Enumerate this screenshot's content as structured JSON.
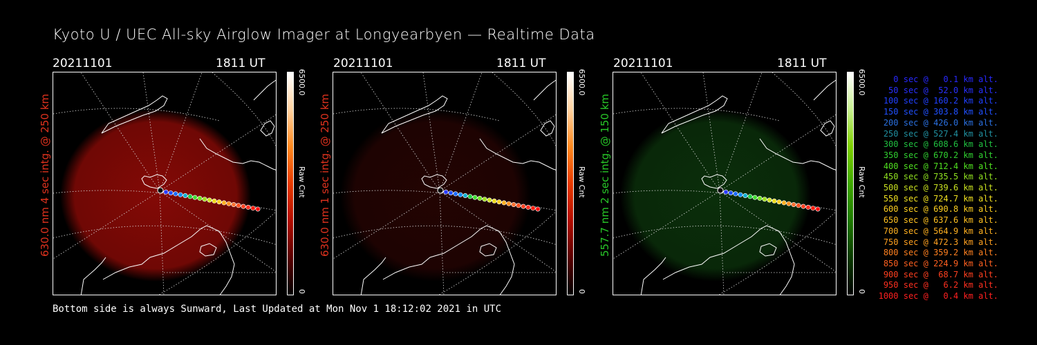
{
  "title": "Kyoto U / UEC All-sky Airglow Imager at Longyearbyen — Realtime Data",
  "panels": [
    {
      "date": "20211101",
      "time": "1811 UT",
      "ylabel": "630.0 nm 4 sec intg. @ 250 km",
      "label_color": "#e0321e",
      "glow_color": "#8a0a06",
      "glow_strength": 0.95,
      "cbar_max": "6500.0",
      "cbar_min": "0",
      "cbar_label": "Raw Cnt",
      "cbar_gradient": [
        "#000000",
        "#5a0000",
        "#b30d00",
        "#e83a00",
        "#ff8a20",
        "#ffd2a0",
        "#ffffff"
      ]
    },
    {
      "date": "20211101",
      "time": "1811 UT",
      "ylabel": "630.0 nm 1 sec intg. @ 250 km",
      "label_color": "#e0321e",
      "glow_color": "#3a0604",
      "glow_strength": 0.6,
      "cbar_max": "6500.0",
      "cbar_min": "0",
      "cbar_label": "Raw Cnt",
      "cbar_gradient": [
        "#000000",
        "#5a0000",
        "#b30d00",
        "#e83a00",
        "#ff8a20",
        "#ffd2a0",
        "#ffffff"
      ]
    },
    {
      "date": "20211101",
      "time": "1811 UT",
      "ylabel": "557.7 nm 2 sec intg. @ 150 km",
      "label_color": "#28c828",
      "glow_color": "#0d3a0d",
      "glow_strength": 0.8,
      "cbar_max": "6500.0",
      "cbar_min": "0",
      "cbar_label": "Raw Cnt",
      "cbar_gradient": [
        "#000000",
        "#0a3a00",
        "#1e7a00",
        "#3fa800",
        "#7ed000",
        "#c8f090",
        "#ffffff"
      ]
    }
  ],
  "footer": "Bottom side is always Sunward, Last Updated at Mon Nov  1 18:12:02 2021 in UTC",
  "trajectory_colors": [
    "#3030ff",
    "#2a3cff",
    "#2050ff",
    "#1a6aff",
    "#1090ff",
    "#10b0d0",
    "#20d040",
    "#40e030",
    "#70e020",
    "#a0e020",
    "#d0e020",
    "#f0e020",
    "#ffd020",
    "#ffb020",
    "#ff9020",
    "#ff7030",
    "#ff5020",
    "#ff4020",
    "#ff3020",
    "#ff2010",
    "#ff1010"
  ],
  "legend": [
    {
      "text": "   0 sec @   0.1 km alt.",
      "color": "#2828ff"
    },
    {
      "text": "  50 sec @  52.0 km alt.",
      "color": "#2830ff"
    },
    {
      "text": " 100 sec @ 160.2 km alt.",
      "color": "#2040ff"
    },
    {
      "text": " 150 sec @ 303.8 km alt.",
      "color": "#2050ff"
    },
    {
      "text": " 200 sec @ 426.0 km alt.",
      "color": "#2a70e0"
    },
    {
      "text": " 250 sec @ 527.4 km alt.",
      "color": "#2090a0"
    },
    {
      "text": " 300 sec @ 608.6 km alt.",
      "color": "#20c040"
    },
    {
      "text": " 350 sec @ 670.2 km alt.",
      "color": "#30d030"
    },
    {
      "text": " 400 sec @ 712.4 km alt.",
      "color": "#50e020"
    },
    {
      "text": " 450 sec @ 735.5 km alt.",
      "color": "#90e020"
    },
    {
      "text": " 500 sec @ 739.6 km alt.",
      "color": "#c8e020"
    },
    {
      "text": " 550 sec @ 724.7 km alt.",
      "color": "#f0e020"
    },
    {
      "text": " 600 sec @ 690.8 km alt.",
      "color": "#ffd020"
    },
    {
      "text": " 650 sec @ 637.6 km alt.",
      "color": "#ffc020"
    },
    {
      "text": " 700 sec @ 564.9 km alt.",
      "color": "#ffb020"
    },
    {
      "text": " 750 sec @ 472.3 km alt.",
      "color": "#ffa020"
    },
    {
      "text": " 800 sec @ 359.2 km alt.",
      "color": "#ff8020"
    },
    {
      "text": " 850 sec @ 224.9 km alt.",
      "color": "#ff6020"
    },
    {
      "text": " 900 sec @  68.7 km alt.",
      "color": "#ff4020"
    },
    {
      "text": " 950 sec @   6.2 km alt.",
      "color": "#ff3020"
    },
    {
      "text": "1000 sec @   0.4 km alt.",
      "color": "#ff2020"
    }
  ]
}
